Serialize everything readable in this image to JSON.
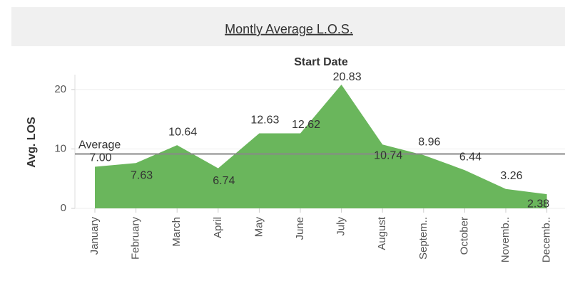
{
  "chart_data": {
    "type": "area",
    "title": "Montly Average L.O.S.",
    "x_header": "Start Date",
    "y_label": "Avg. LOS",
    "categories": [
      "January",
      "February",
      "March",
      "April",
      "May",
      "June",
      "July",
      "August",
      "Septem..",
      "October",
      "Novemb..",
      "Decemb.."
    ],
    "series": [
      {
        "name": "Avg. LOS",
        "color": "#6ab65c",
        "values": [
          7.0,
          7.63,
          10.64,
          6.74,
          12.63,
          12.62,
          20.83,
          10.74,
          8.96,
          6.44,
          3.26,
          2.38
        ],
        "value_labels": [
          "7.00",
          "7.63",
          "10.64",
          "6.74",
          "12.63",
          "12.62",
          "20.83",
          "10.74",
          "8.96",
          "6.44",
          "3.26",
          "2.38"
        ]
      }
    ],
    "reference_line": {
      "label": "Average",
      "value": 9.16
    },
    "ylim": [
      0,
      22.5
    ],
    "yticks": [
      0,
      10,
      20
    ],
    "grid": true
  }
}
